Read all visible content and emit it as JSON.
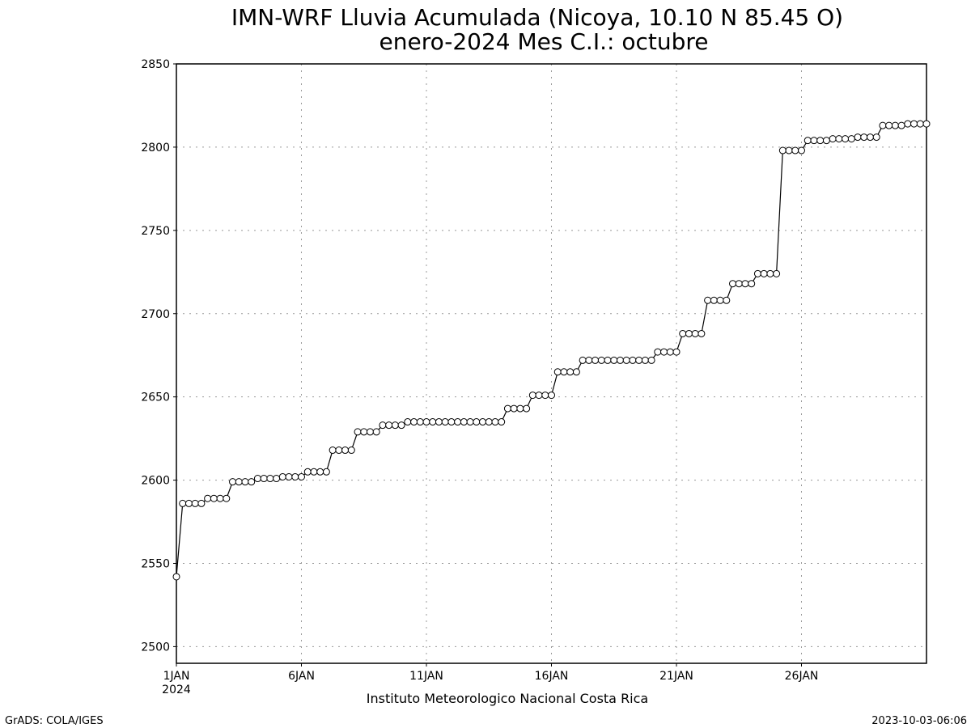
{
  "chart_data": {
    "type": "line",
    "title": "IMN-WRF  Lluvia Acumulada  (Nicoya, 10.10  N 85.45  O)",
    "subtitle": "enero-2024 Mes C.I.: octubre",
    "xlabel": "",
    "ylabel": "",
    "xlim_days": [
      1,
      31
    ],
    "ylim": [
      2490,
      2850
    ],
    "yticks": [
      2500,
      2550,
      2600,
      2650,
      2700,
      2750,
      2800,
      2850
    ],
    "xtick_days": [
      1,
      6,
      11,
      16,
      21,
      26
    ],
    "xtick_labels": [
      "1JAN",
      "6JAN",
      "11JAN",
      "16JAN",
      "21JAN",
      "26JAN"
    ],
    "xtick_year": "2024",
    "grid": true,
    "marker": "open-circle",
    "step_hours": 6,
    "series": [
      {
        "values": [
          2542,
          2586,
          2586,
          2586,
          2586,
          2589,
          2589,
          2589,
          2589,
          2599,
          2599,
          2599,
          2599,
          2601,
          2601,
          2601,
          2601,
          2602,
          2602,
          2602,
          2602,
          2605,
          2605,
          2605,
          2605,
          2618,
          2618,
          2618,
          2618,
          2629,
          2629,
          2629,
          2629,
          2633,
          2633,
          2633,
          2633,
          2635,
          2635,
          2635,
          2635,
          2635,
          2635,
          2635,
          2635,
          2635,
          2635,
          2635,
          2635,
          2635,
          2635,
          2635,
          2635,
          2643,
          2643,
          2643,
          2643,
          2651,
          2651,
          2651,
          2651,
          2665,
          2665,
          2665,
          2665,
          2672,
          2672,
          2672,
          2672,
          2672,
          2672,
          2672,
          2672,
          2672,
          2672,
          2672,
          2672,
          2677,
          2677,
          2677,
          2677,
          2688,
          2688,
          2688,
          2688,
          2708,
          2708,
          2708,
          2708,
          2718,
          2718,
          2718,
          2718,
          2724,
          2724,
          2724,
          2724,
          2798,
          2798,
          2798,
          2798,
          2804,
          2804,
          2804,
          2804,
          2805,
          2805,
          2805,
          2805,
          2806,
          2806,
          2806,
          2806,
          2813,
          2813,
          2813,
          2813,
          2814,
          2814,
          2814,
          2814
        ]
      }
    ]
  },
  "footer": {
    "institution": "Instituto Meteorologico Nacional Costa Rica",
    "left": "GrADS: COLA/IGES",
    "right": "2023-10-03-06:06"
  }
}
